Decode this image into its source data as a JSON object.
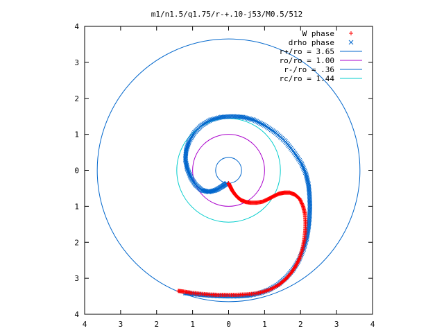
{
  "chart_data": {
    "type": "scatter",
    "title": "m1/n1.5/q1.75/r-+.10-j53/M0.5/512",
    "xlabel": "",
    "ylabel": "",
    "xlim": [
      -4,
      4
    ],
    "ylim": [
      -4,
      4
    ],
    "x_tick_labels": [
      "4",
      "3",
      "2",
      "1",
      "0",
      "1",
      "2",
      "3",
      "4"
    ],
    "y_tick_labels": [
      "4",
      "3",
      "2",
      "1",
      "0",
      "1",
      "2",
      "3",
      "4"
    ],
    "grid": false,
    "legend_position": "top-right",
    "series": [
      {
        "name": "W phase",
        "kind": "points",
        "marker": "+",
        "color": "#ff0000",
        "points": [
          [
            0.0,
            -0.36
          ],
          [
            0.05,
            -0.46
          ],
          [
            0.1,
            -0.56
          ],
          [
            0.17,
            -0.66
          ],
          [
            0.25,
            -0.75
          ],
          [
            0.35,
            -0.83
          ],
          [
            0.48,
            -0.88
          ],
          [
            0.62,
            -0.9
          ],
          [
            0.78,
            -0.9
          ],
          [
            0.95,
            -0.87
          ],
          [
            1.1,
            -0.8
          ],
          [
            1.25,
            -0.72
          ],
          [
            1.4,
            -0.65
          ],
          [
            1.55,
            -0.62
          ],
          [
            1.7,
            -0.62
          ],
          [
            1.85,
            -0.68
          ],
          [
            1.98,
            -0.8
          ],
          [
            2.07,
            -1.0
          ],
          [
            2.12,
            -1.2
          ],
          [
            2.14,
            -1.45
          ],
          [
            2.13,
            -1.7
          ],
          [
            2.1,
            -1.95
          ],
          [
            2.05,
            -2.2
          ],
          [
            1.97,
            -2.45
          ],
          [
            1.87,
            -2.65
          ],
          [
            1.74,
            -2.85
          ],
          [
            1.58,
            -3.03
          ],
          [
            1.4,
            -3.18
          ],
          [
            1.18,
            -3.3
          ],
          [
            0.95,
            -3.38
          ],
          [
            0.7,
            -3.43
          ],
          [
            0.45,
            -3.45
          ],
          [
            0.2,
            -3.46
          ],
          [
            -0.05,
            -3.46
          ],
          [
            -0.3,
            -3.46
          ],
          [
            -0.55,
            -3.45
          ],
          [
            -0.8,
            -3.43
          ],
          [
            -1.05,
            -3.4
          ],
          [
            -1.25,
            -3.37
          ],
          [
            -1.4,
            -3.35
          ]
        ]
      },
      {
        "name": "drho phase",
        "kind": "points",
        "marker": "x",
        "color": "#0066cc",
        "points": [
          [
            -0.05,
            -0.36
          ],
          [
            -0.18,
            -0.45
          ],
          [
            -0.35,
            -0.55
          ],
          [
            -0.55,
            -0.6
          ],
          [
            -0.75,
            -0.55
          ],
          [
            -0.92,
            -0.4
          ],
          [
            -1.05,
            -0.2
          ],
          [
            -1.15,
            0.05
          ],
          [
            -1.2,
            0.3
          ],
          [
            -1.18,
            0.55
          ],
          [
            -1.1,
            0.8
          ],
          [
            -0.95,
            1.05
          ],
          [
            -0.75,
            1.25
          ],
          [
            -0.5,
            1.4
          ],
          [
            -0.2,
            1.48
          ],
          [
            0.1,
            1.5
          ],
          [
            0.4,
            1.48
          ],
          [
            0.7,
            1.4
          ],
          [
            1.0,
            1.25
          ],
          [
            1.3,
            1.05
          ],
          [
            1.58,
            0.8
          ],
          [
            1.82,
            0.5
          ],
          [
            2.02,
            0.2
          ],
          [
            2.15,
            -0.1
          ],
          [
            2.22,
            -0.4
          ],
          [
            2.25,
            -0.7
          ],
          [
            2.26,
            -1.0
          ],
          [
            2.25,
            -1.3
          ],
          [
            2.22,
            -1.6
          ],
          [
            2.17,
            -1.9
          ],
          [
            2.08,
            -2.2
          ],
          [
            1.95,
            -2.5
          ],
          [
            1.8,
            -2.75
          ],
          [
            1.6,
            -2.98
          ],
          [
            1.38,
            -3.17
          ],
          [
            1.12,
            -3.32
          ],
          [
            0.85,
            -3.42
          ],
          [
            0.55,
            -3.48
          ],
          [
            0.25,
            -3.5
          ],
          [
            -0.05,
            -3.5
          ],
          [
            -0.35,
            -3.49
          ],
          [
            -0.65,
            -3.47
          ],
          [
            -0.95,
            -3.44
          ],
          [
            -1.2,
            -3.41
          ]
        ]
      },
      {
        "name": "r+/ro = 3.65",
        "kind": "circle",
        "radius": 3.65,
        "color": "#0066cc"
      },
      {
        "name": "ro/ro = 1.00",
        "kind": "circle",
        "radius": 1.0,
        "color": "#aa00cc"
      },
      {
        "name": "r-/ro = .36",
        "kind": "circle",
        "radius": 0.36,
        "color": "#0066cc"
      },
      {
        "name": "rc/ro = 1.44",
        "kind": "circle",
        "radius": 1.44,
        "color": "#00cccc"
      }
    ]
  }
}
